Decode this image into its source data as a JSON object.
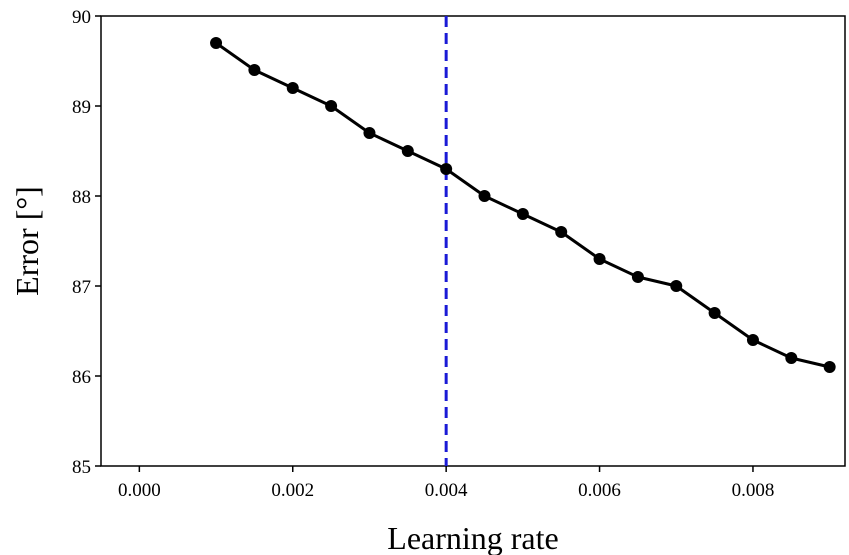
{
  "chart_data": {
    "type": "line",
    "xlabel": "Learning rate",
    "ylabel": "Error [°]",
    "xlim": [
      -0.0005,
      0.0092
    ],
    "ylim": [
      85,
      90
    ],
    "x_ticks": [
      0.0,
      0.002,
      0.004,
      0.006,
      0.008
    ],
    "x_tick_labels": [
      "0.000",
      "0.002",
      "0.004",
      "0.006",
      "0.008"
    ],
    "y_ticks": [
      85,
      86,
      87,
      88,
      89,
      90
    ],
    "y_tick_labels": [
      "85",
      "86",
      "87",
      "88",
      "89",
      "90"
    ],
    "grid": false,
    "series": [
      {
        "color": "#000000",
        "marker": "circle",
        "x": [
          0.001,
          0.0015,
          0.002,
          0.0025,
          0.003,
          0.0035,
          0.004,
          0.0045,
          0.005,
          0.0055,
          0.006,
          0.0065,
          0.007,
          0.0075,
          0.008,
          0.0085,
          0.009
        ],
        "y": [
          89.7,
          89.4,
          89.2,
          89.0,
          88.7,
          88.5,
          88.3,
          88.0,
          87.8,
          87.6,
          87.3,
          87.1,
          87.0,
          86.7,
          86.4,
          86.2,
          86.1
        ]
      }
    ],
    "reference_line": {
      "orientation": "vertical",
      "x": 0.004,
      "color": "#1a1ad6",
      "style": "dashed"
    }
  }
}
